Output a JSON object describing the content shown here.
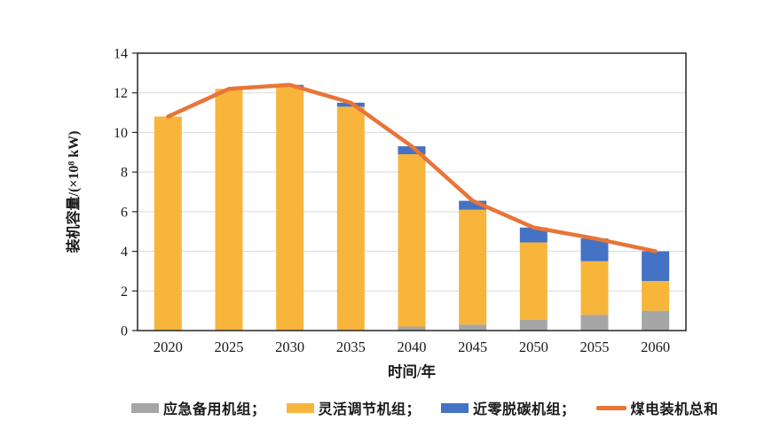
{
  "chart_data": {
    "type": "bar",
    "subtype": "stacked-bars-with-total-line",
    "title": "",
    "xlabel": "时间/年",
    "ylabel": "装机容量/(×10⁸ kW)",
    "categories": [
      "2020",
      "2025",
      "2030",
      "2035",
      "2040",
      "2045",
      "2050",
      "2055",
      "2060"
    ],
    "series": [
      {
        "name": "应急备用机组",
        "type": "bar",
        "color": "#A6A6A6",
        "values": [
          0,
          0,
          0,
          0,
          0.2,
          0.3,
          0.55,
          0.8,
          1.0
        ]
      },
      {
        "name": "灵活调节机组",
        "type": "bar",
        "color": "#F7B53C",
        "values": [
          10.8,
          12.2,
          12.3,
          11.3,
          8.7,
          5.8,
          3.9,
          2.7,
          1.5
        ]
      },
      {
        "name": "近零脱碳机组",
        "type": "bar",
        "color": "#4472C4",
        "values": [
          0,
          0,
          0.1,
          0.2,
          0.4,
          0.45,
          0.75,
          1.15,
          1.5
        ]
      },
      {
        "name": "煤电装机总和",
        "type": "line",
        "color": "#E97438",
        "values": [
          10.8,
          12.2,
          12.4,
          11.5,
          9.3,
          6.55,
          5.2,
          4.65,
          4.0
        ]
      }
    ],
    "ylim": [
      0,
      14
    ],
    "ytick_step": 2,
    "yticks": [
      0,
      2,
      4,
      6,
      8,
      10,
      12,
      14
    ],
    "grid": true,
    "plot_border": true,
    "legend_position": "bottom",
    "colors": {
      "axis_border": "#262626",
      "gridline": "#d9d9d9",
      "text": "#1a1a1a"
    }
  },
  "legend": {
    "items": [
      {
        "label": "应急备用机组；",
        "swatch": "rect",
        "color": "#A6A6A6"
      },
      {
        "label": "灵活调节机组；",
        "swatch": "rect",
        "color": "#F7B53C"
      },
      {
        "label": "近零脱碳机组；",
        "swatch": "rect",
        "color": "#4472C4"
      },
      {
        "label": "煤电装机总和",
        "swatch": "line",
        "color": "#E97438"
      }
    ]
  }
}
